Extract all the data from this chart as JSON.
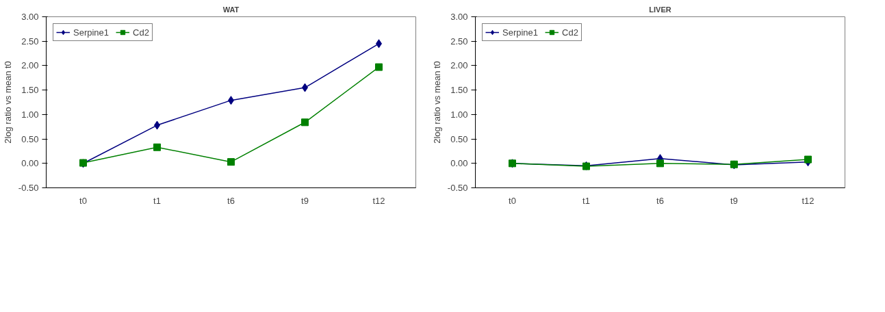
{
  "chart_data": [
    {
      "type": "line",
      "title": "WAT",
      "ylabel": "2log ratio vs mean t0",
      "categories": [
        "t0",
        "t1",
        "t6",
        "t9",
        "t12"
      ],
      "ylim": [
        -0.5,
        3.0
      ],
      "yticks": [
        {
          "value": -0.5,
          "label": "-0.50"
        },
        {
          "value": 0,
          "label": "0.00"
        },
        {
          "value": 0.5,
          "label": "0.50"
        },
        {
          "value": 1,
          "label": "1.00"
        },
        {
          "value": 1.5,
          "label": "1.50"
        },
        {
          "value": 2,
          "label": "2.00"
        },
        {
          "value": 2.5,
          "label": "2.50"
        },
        {
          "value": 3,
          "label": "3.00"
        }
      ],
      "grid": false,
      "legend": "top left",
      "series": [
        {
          "name": "Serpine1",
          "color": "#000080",
          "marker": "diamond",
          "values": [
            0.0,
            0.78,
            1.29,
            1.55,
            2.45
          ]
        },
        {
          "name": "Cd2",
          "color": "#008000",
          "marker": "square",
          "values": [
            0.01,
            0.33,
            0.03,
            0.84,
            1.97
          ]
        }
      ]
    },
    {
      "type": "line",
      "title": "LIVER",
      "ylabel": "2log ratio vs mean t0",
      "categories": [
        "t0",
        "t1",
        "t6",
        "t9",
        "t12"
      ],
      "ylim": [
        -0.5,
        3.0
      ],
      "yticks": [
        {
          "value": -0.5,
          "label": "-0.50"
        },
        {
          "value": 0,
          "label": "0.00"
        },
        {
          "value": 0.5,
          "label": "0.50"
        },
        {
          "value": 1,
          "label": "1.00"
        },
        {
          "value": 1.5,
          "label": "1.50"
        },
        {
          "value": 2,
          "label": "2.00"
        },
        {
          "value": 2.5,
          "label": "2.50"
        },
        {
          "value": 3,
          "label": "3.00"
        }
      ],
      "grid": false,
      "legend": "top left",
      "series": [
        {
          "name": "Serpine1",
          "color": "#000080",
          "marker": "diamond",
          "values": [
            0.0,
            -0.05,
            0.1,
            -0.03,
            0.03
          ]
        },
        {
          "name": "Cd2",
          "color": "#008000",
          "marker": "square",
          "values": [
            0.0,
            -0.06,
            0.0,
            -0.02,
            0.08
          ]
        }
      ]
    }
  ]
}
